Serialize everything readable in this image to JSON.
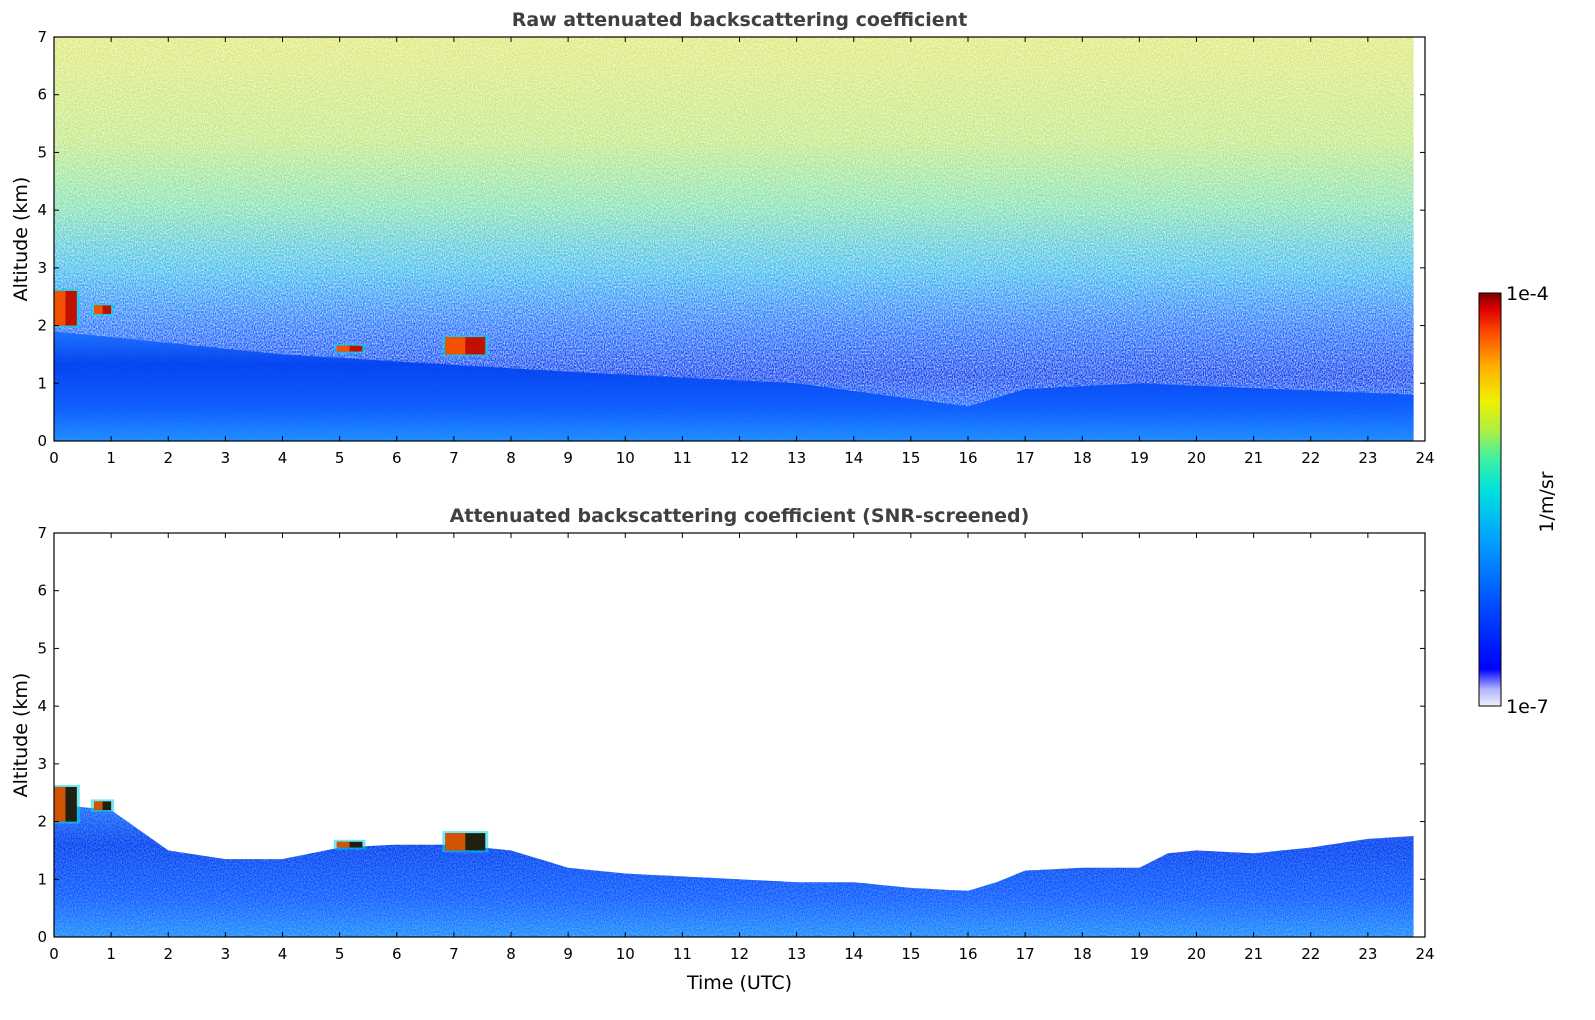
{
  "chart_data": [
    {
      "type": "heatmap",
      "title": "Raw attenuated backscattering coefficient",
      "xlabel": "",
      "ylabel": "Altitude (km)",
      "xlim": [
        0,
        24
      ],
      "ylim": [
        0,
        7
      ],
      "xticks": [
        "0",
        "1",
        "2",
        "3",
        "4",
        "5",
        "6",
        "7",
        "8",
        "9",
        "10",
        "11",
        "12",
        "13",
        "14",
        "15",
        "16",
        "17",
        "18",
        "19",
        "20",
        "21",
        "22",
        "23",
        "24"
      ],
      "yticks": [
        "0",
        "1",
        "2",
        "3",
        "4",
        "5",
        "6",
        "7"
      ],
      "screened": false,
      "data_end_time": 23.8,
      "boundary_layer_top_km": [
        [
          0,
          1.9
        ],
        [
          4,
          1.5
        ],
        [
          9,
          1.2
        ],
        [
          13,
          1.0
        ],
        [
          16,
          0.6
        ],
        [
          17,
          0.9
        ],
        [
          19,
          1.0
        ],
        [
          23.8,
          0.8
        ]
      ],
      "cloud_features": [
        {
          "t0": 0.0,
          "t1": 0.4,
          "z0": 2.0,
          "z1": 2.6
        },
        {
          "t0": 0.7,
          "t1": 1.0,
          "z0": 2.2,
          "z1": 2.35
        },
        {
          "t0": 4.95,
          "t1": 5.4,
          "z0": 1.55,
          "z1": 1.65
        },
        {
          "t0": 6.85,
          "t1": 7.55,
          "z0": 1.5,
          "z1": 1.8
        }
      ]
    },
    {
      "type": "heatmap",
      "title": "Attenuated backscattering coefficient (SNR-screened)",
      "xlabel": "Time (UTC)",
      "ylabel": "Altitude (km)",
      "xlim": [
        0,
        24
      ],
      "ylim": [
        0,
        7
      ],
      "xticks": [
        "0",
        "1",
        "2",
        "3",
        "4",
        "5",
        "6",
        "7",
        "8",
        "9",
        "10",
        "11",
        "12",
        "13",
        "14",
        "15",
        "16",
        "17",
        "18",
        "19",
        "20",
        "21",
        "22",
        "23",
        "24"
      ],
      "yticks": [
        "0",
        "1",
        "2",
        "3",
        "4",
        "5",
        "6",
        "7"
      ],
      "screened": true,
      "data_end_time": 23.8,
      "signal_top_km": [
        [
          0,
          2.3
        ],
        [
          1,
          2.2
        ],
        [
          2,
          1.5
        ],
        [
          3,
          1.35
        ],
        [
          4,
          1.35
        ],
        [
          5,
          1.55
        ],
        [
          6,
          1.6
        ],
        [
          7,
          1.6
        ],
        [
          8,
          1.5
        ],
        [
          9,
          1.2
        ],
        [
          10,
          1.1
        ],
        [
          11,
          1.05
        ],
        [
          12,
          1.0
        ],
        [
          13,
          0.95
        ],
        [
          14,
          0.95
        ],
        [
          15,
          0.85
        ],
        [
          16,
          0.8
        ],
        [
          16.5,
          0.95
        ],
        [
          17,
          1.15
        ],
        [
          18,
          1.2
        ],
        [
          19,
          1.2
        ],
        [
          19.5,
          1.45
        ],
        [
          20,
          1.5
        ],
        [
          21,
          1.45
        ],
        [
          22,
          1.55
        ],
        [
          23,
          1.7
        ],
        [
          23.8,
          1.75
        ]
      ],
      "cloud_features": [
        {
          "t0": 0.0,
          "t1": 0.4,
          "z0": 2.0,
          "z1": 2.6
        },
        {
          "t0": 0.7,
          "t1": 1.0,
          "z0": 2.2,
          "z1": 2.35
        },
        {
          "t0": 4.95,
          "t1": 5.4,
          "z0": 1.55,
          "z1": 1.65
        },
        {
          "t0": 6.85,
          "t1": 7.55,
          "z0": 1.5,
          "z1": 1.8
        }
      ]
    }
  ],
  "colorbar": {
    "label": "1/m/sr",
    "max_label": "1e-4",
    "min_label": "1e-7",
    "scale": "log",
    "colormap": [
      "#f0f0ff",
      "#b4b4ff",
      "#0000ff",
      "#0050ff",
      "#00a0ff",
      "#00e0e0",
      "#40f0a0",
      "#b0f040",
      "#f0f000",
      "#ffb000",
      "#ff5000",
      "#e00000",
      "#800000"
    ]
  }
}
